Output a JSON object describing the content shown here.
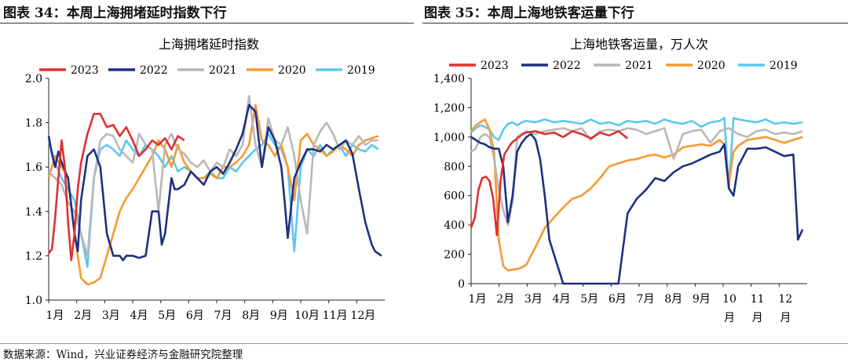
{
  "left_title": "图表 34：本周上海拥堵延时指数下行",
  "right_title": "图表 35：本周上海地铁客运量下行",
  "source": "数据来源：Wind，兴业证券经济与金融研究院整理",
  "chart_data": [
    {
      "type": "line",
      "title": "上海拥堵延时指数",
      "ylim": [
        1.0,
        2.0
      ],
      "yticks": [
        "1.0",
        "1.2",
        "1.4",
        "1.6",
        "1.8",
        "2.0"
      ],
      "ytick_values": [
        1.0,
        1.2,
        1.4,
        1.6,
        1.8,
        2.0
      ],
      "xtick_labels": [
        "1月",
        "2月",
        "3月",
        "4月",
        "5月",
        "6月",
        "7月",
        "8月",
        "9月",
        "10月",
        "11月",
        "12月"
      ],
      "xlim": [
        0,
        52
      ],
      "x_unit": "week of year",
      "legend": "top",
      "series": [
        {
          "name": "2023",
          "color": "#e03030",
          "x": [
            0,
            0.5,
            1,
            1.5,
            2,
            2.5,
            3,
            3.5,
            4,
            4.5,
            5,
            6,
            7,
            8,
            9,
            10,
            11,
            12,
            13,
            14,
            15,
            16,
            17,
            18,
            19,
            20,
            21
          ],
          "values": [
            1.21,
            1.23,
            1.37,
            1.55,
            1.72,
            1.6,
            1.35,
            1.18,
            1.3,
            1.5,
            1.62,
            1.75,
            1.84,
            1.84,
            1.78,
            1.79,
            1.74,
            1.78,
            1.72,
            1.65,
            1.68,
            1.72,
            1.7,
            1.73,
            1.68,
            1.74,
            1.72
          ]
        },
        {
          "name": "2022",
          "color": "#1f2f80",
          "x": [
            0,
            0.5,
            1,
            1.5,
            2,
            3,
            4,
            4.5,
            5,
            6,
            7,
            8,
            9,
            10,
            11,
            11.5,
            12,
            13,
            14,
            15,
            16,
            17,
            17.5,
            18,
            19,
            19.5,
            20,
            21,
            22,
            23,
            24,
            25,
            26,
            27,
            28,
            29,
            30,
            31,
            32,
            33,
            34,
            35,
            36,
            36.5,
            37,
            38,
            39,
            40,
            41,
            42,
            43,
            44,
            45,
            46,
            47,
            48,
            49,
            50,
            50.5,
            51,
            51.5
          ],
          "values": [
            1.74,
            1.66,
            1.6,
            1.67,
            1.62,
            1.55,
            1.3,
            1.22,
            1.45,
            1.65,
            1.68,
            1.6,
            1.3,
            1.2,
            1.2,
            1.18,
            1.2,
            1.2,
            1.19,
            1.2,
            1.4,
            1.4,
            1.25,
            1.3,
            1.55,
            1.5,
            1.5,
            1.52,
            1.58,
            1.55,
            1.52,
            1.58,
            1.6,
            1.57,
            1.62,
            1.68,
            1.75,
            1.88,
            1.85,
            1.6,
            1.78,
            1.72,
            1.6,
            1.45,
            1.28,
            1.55,
            1.62,
            1.68,
            1.68,
            1.67,
            1.7,
            1.68,
            1.7,
            1.72,
            1.66,
            1.5,
            1.35,
            1.25,
            1.22,
            1.21,
            1.2
          ]
        },
        {
          "name": "2021",
          "color": "#b8b8b8",
          "x": [
            0,
            1,
            2,
            3,
            4,
            5,
            6,
            7,
            8,
            9,
            10,
            11,
            12,
            13,
            14,
            15,
            16,
            17,
            18,
            19,
            20,
            21,
            22,
            23,
            24,
            25,
            26,
            27,
            28,
            29,
            30,
            31,
            32,
            33,
            34,
            35,
            36,
            37,
            38,
            39,
            40,
            41,
            42,
            43,
            44,
            45,
            46,
            47,
            48,
            49,
            50,
            51
          ],
          "values": [
            1.58,
            1.55,
            1.52,
            1.44,
            1.4,
            1.3,
            1.2,
            1.55,
            1.72,
            1.75,
            1.74,
            1.68,
            1.65,
            1.62,
            1.75,
            1.7,
            1.68,
            1.4,
            1.7,
            1.75,
            1.68,
            1.66,
            1.62,
            1.6,
            1.63,
            1.58,
            1.62,
            1.6,
            1.68,
            1.65,
            1.7,
            1.92,
            1.7,
            1.6,
            1.82,
            1.72,
            1.7,
            1.78,
            1.65,
            1.45,
            1.3,
            1.7,
            1.76,
            1.8,
            1.75,
            1.68,
            1.72,
            1.7,
            1.74,
            1.7,
            1.72,
            1.72
          ]
        },
        {
          "name": "2020",
          "color": "#f59a30",
          "x": [
            0,
            1,
            2,
            3,
            4,
            5,
            6,
            7,
            8,
            9,
            10,
            11,
            12,
            13,
            14,
            15,
            16,
            17,
            18,
            19,
            20,
            21,
            22,
            23,
            24,
            25,
            26,
            27,
            28,
            29,
            30,
            31,
            32,
            33,
            34,
            35,
            36,
            37,
            38,
            39,
            40,
            41,
            42,
            43,
            44,
            45,
            46,
            47,
            48,
            49,
            50,
            51
          ],
          "values": [
            1.55,
            1.65,
            1.6,
            1.55,
            1.3,
            1.1,
            1.07,
            1.08,
            1.1,
            1.2,
            1.3,
            1.4,
            1.46,
            1.5,
            1.55,
            1.6,
            1.65,
            1.72,
            1.68,
            1.6,
            1.7,
            1.62,
            1.58,
            1.55,
            1.55,
            1.57,
            1.55,
            1.6,
            1.6,
            1.62,
            1.65,
            1.7,
            1.88,
            1.72,
            1.7,
            1.65,
            1.7,
            1.6,
            1.45,
            1.72,
            1.75,
            1.7,
            1.68,
            1.65,
            1.67,
            1.7,
            1.68,
            1.65,
            1.7,
            1.72,
            1.73,
            1.74
          ]
        },
        {
          "name": "2019",
          "color": "#5bc8ef",
          "x": [
            0,
            1,
            2,
            3,
            4,
            5,
            6,
            7,
            8,
            9,
            10,
            11,
            12,
            13,
            14,
            15,
            16,
            17,
            18,
            19,
            20,
            21,
            22,
            23,
            24,
            25,
            26,
            27,
            28,
            29,
            30,
            31,
            32,
            33,
            34,
            35,
            36,
            37,
            38,
            39,
            40,
            41,
            42,
            43,
            44,
            45,
            46,
            47,
            48,
            49,
            50,
            51
          ],
          "values": [
            1.72,
            1.62,
            1.55,
            1.5,
            1.45,
            1.3,
            1.15,
            1.55,
            1.68,
            1.7,
            1.68,
            1.65,
            1.72,
            1.68,
            1.65,
            1.7,
            1.68,
            1.65,
            1.6,
            1.65,
            1.58,
            1.6,
            1.58,
            1.55,
            1.55,
            1.58,
            1.55,
            1.55,
            1.6,
            1.58,
            1.62,
            1.65,
            1.68,
            1.7,
            1.75,
            1.7,
            1.68,
            1.6,
            1.22,
            1.6,
            1.68,
            1.65,
            1.7,
            1.65,
            1.68,
            1.7,
            1.65,
            1.7,
            1.68,
            1.67,
            1.7,
            1.68
          ]
        }
      ]
    },
    {
      "type": "line",
      "title": "上海地铁客运量，万人次",
      "ylim": [
        0,
        1400
      ],
      "yticks": [
        "0",
        "200",
        "400",
        "600",
        "800",
        "1,000",
        "1,200",
        "1,400"
      ],
      "ytick_values": [
        0,
        200,
        400,
        600,
        800,
        1000,
        1200,
        1400
      ],
      "xtick_labels": [
        "1月",
        "2月",
        "3月",
        "4月",
        "5月",
        "6月",
        "7月",
        "8月",
        "9月",
        "10",
        "11",
        "12"
      ],
      "xtick_sublabels": [
        "",
        "",
        "",
        "",
        "",
        "",
        "",
        "",
        "",
        "月",
        "月",
        "月"
      ],
      "xlim": [
        0,
        365
      ],
      "x_unit": "day of year",
      "legend": "top",
      "series": [
        {
          "name": "2023",
          "color": "#e03030",
          "x": [
            0,
            4,
            8,
            12,
            16,
            20,
            24,
            28,
            32,
            36,
            40,
            44,
            48,
            52,
            56,
            60,
            70,
            80,
            90,
            100,
            110,
            120,
            130,
            140,
            150,
            160,
            170
          ],
          "values": [
            380,
            450,
            640,
            720,
            730,
            700,
            580,
            330,
            700,
            880,
            920,
            960,
            980,
            1000,
            1020,
            1030,
            1040,
            1020,
            1030,
            1000,
            1040,
            1020,
            990,
            1030,
            1010,
            1040,
            990
          ]
        },
        {
          "name": "2022",
          "color": "#1f2f80",
          "x": [
            0,
            5,
            10,
            15,
            20,
            25,
            30,
            35,
            40,
            45,
            50,
            55,
            60,
            65,
            70,
            75,
            80,
            85,
            90,
            95,
            100,
            105,
            110,
            120,
            130,
            140,
            150,
            160,
            170,
            180,
            190,
            200,
            210,
            220,
            230,
            240,
            250,
            260,
            270,
            275,
            280,
            285,
            290,
            300,
            310,
            320,
            330,
            340,
            350,
            355,
            360
          ],
          "values": [
            1000,
            980,
            960,
            950,
            930,
            920,
            920,
            800,
            420,
            600,
            900,
            960,
            1000,
            1020,
            980,
            850,
            600,
            300,
            200,
            100,
            0,
            0,
            0,
            0,
            0,
            0,
            0,
            0,
            480,
            580,
            640,
            720,
            700,
            760,
            800,
            820,
            850,
            880,
            900,
            950,
            650,
            600,
            800,
            920,
            920,
            930,
            900,
            870,
            880,
            300,
            370
          ]
        },
        {
          "name": "2021",
          "color": "#b8b8b8",
          "x": [
            0,
            5,
            10,
            15,
            20,
            25,
            30,
            35,
            40,
            45,
            50,
            55,
            60,
            70,
            80,
            90,
            100,
            110,
            120,
            130,
            140,
            150,
            160,
            170,
            180,
            190,
            200,
            210,
            220,
            230,
            240,
            250,
            260,
            270,
            280,
            290,
            300,
            310,
            320,
            330,
            340,
            350,
            360
          ],
          "values": [
            900,
            920,
            1000,
            1020,
            1000,
            850,
            650,
            500,
            400,
            560,
            1000,
            1020,
            1040,
            1020,
            1040,
            1050,
            1060,
            1040,
            1060,
            980,
            1040,
            1050,
            1040,
            1060,
            1050,
            1020,
            1040,
            1060,
            850,
            1020,
            1040,
            1050,
            960,
            1040,
            1060,
            1020,
            1000,
            1040,
            1050,
            1020,
            1030,
            1020,
            1040
          ]
        },
        {
          "name": "2020",
          "color": "#f59a30",
          "x": [
            0,
            5,
            10,
            15,
            20,
            25,
            30,
            35,
            40,
            45,
            50,
            55,
            60,
            70,
            80,
            90,
            100,
            110,
            120,
            130,
            140,
            150,
            160,
            170,
            180,
            190,
            200,
            210,
            220,
            230,
            240,
            250,
            260,
            270,
            275,
            280,
            285,
            290,
            300,
            310,
            320,
            330,
            340,
            350,
            360
          ],
          "values": [
            1040,
            1080,
            1100,
            1120,
            1050,
            900,
            300,
            120,
            90,
            95,
            100,
            110,
            130,
            250,
            380,
            450,
            520,
            580,
            600,
            650,
            720,
            800,
            820,
            840,
            850,
            870,
            880,
            860,
            880,
            930,
            940,
            950,
            940,
            980,
            950,
            680,
            900,
            940,
            980,
            990,
            1000,
            980,
            960,
            980,
            1000
          ]
        },
        {
          "name": "2019",
          "color": "#5bc8ef",
          "x": [
            0,
            5,
            10,
            15,
            20,
            25,
            30,
            35,
            40,
            45,
            50,
            55,
            60,
            70,
            80,
            90,
            100,
            110,
            120,
            130,
            140,
            150,
            160,
            170,
            180,
            190,
            200,
            210,
            220,
            230,
            240,
            250,
            260,
            270,
            275,
            280,
            285,
            290,
            300,
            310,
            320,
            330,
            340,
            350,
            360
          ],
          "values": [
            1030,
            1060,
            1080,
            1070,
            1050,
            1000,
            980,
            1050,
            1090,
            1100,
            1080,
            1100,
            1110,
            1100,
            1120,
            1100,
            1110,
            1100,
            1090,
            1120,
            1090,
            1100,
            1080,
            1110,
            1100,
            1110,
            1090,
            1120,
            1100,
            1090,
            1110,
            1070,
            1100,
            1110,
            1130,
            650,
            1130,
            1120,
            1110,
            1100,
            1120,
            1090,
            1100,
            1090,
            1100
          ]
        }
      ]
    }
  ]
}
